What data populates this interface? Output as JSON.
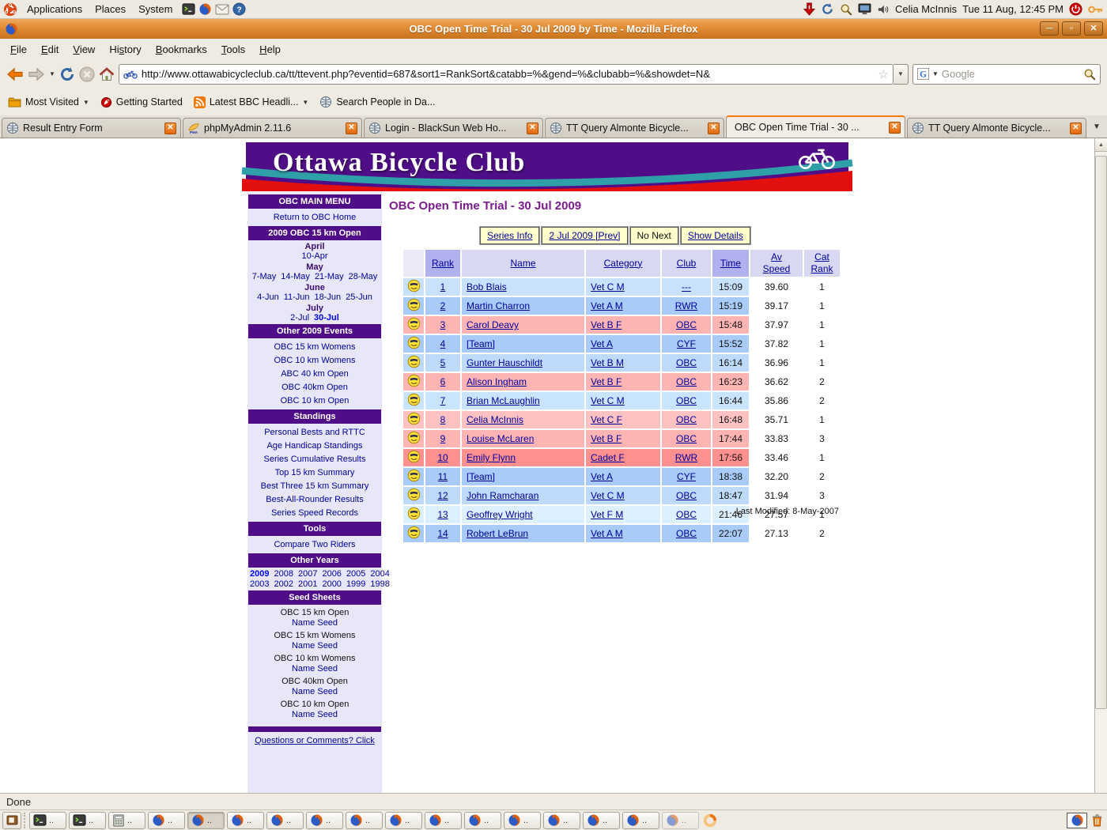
{
  "colors": {
    "purple": "#4F0E87",
    "teal": "#2FA0A8",
    "red": "#E31010",
    "navy": "#000099",
    "blue": "#0000EE",
    "heading": "#7B1B8F",
    "btn": "#FFFFCC"
  },
  "desktop": {
    "panel": {
      "menus": [
        "Applications",
        "Places",
        "System"
      ],
      "user": "Celia McInnis",
      "clock": "Tue 11 Aug, 12:45 PM"
    },
    "status": "Done",
    "taskbar": {
      "buttons": [
        {
          "icon": "terminal",
          "label": ".."
        },
        {
          "icon": "terminal",
          "label": ".."
        },
        {
          "icon": "calc",
          "label": ".."
        },
        {
          "icon": "firefox",
          "label": ".."
        },
        {
          "icon": "firefox",
          "label": "..",
          "active": true
        },
        {
          "icon": "firefox",
          "label": ".."
        },
        {
          "icon": "firefox",
          "label": ".."
        },
        {
          "icon": "firefox",
          "label": ".."
        },
        {
          "icon": "firefox",
          "label": ".."
        },
        {
          "icon": "firefox",
          "label": ".."
        },
        {
          "icon": "firefox",
          "label": ".."
        },
        {
          "icon": "firefox",
          "label": ".."
        },
        {
          "icon": "firefox",
          "label": ".."
        },
        {
          "icon": "firefox",
          "label": ".."
        },
        {
          "icon": "firefox",
          "label": ".."
        },
        {
          "icon": "firefox",
          "label": ".."
        },
        {
          "icon": "firefox",
          "label": "..",
          "faded": true
        }
      ]
    }
  },
  "window": {
    "title": "OBC Open Time Trial - 30 Jul 2009 by Time - Mozilla Firefox"
  },
  "menubar": {
    "items": [
      {
        "label": "File",
        "key": "F"
      },
      {
        "label": "Edit",
        "key": "E"
      },
      {
        "label": "View",
        "key": "V"
      },
      {
        "label": "History",
        "key": "s"
      },
      {
        "label": "Bookmarks",
        "key": "B"
      },
      {
        "label": "Tools",
        "key": "T"
      },
      {
        "label": "Help",
        "key": "H"
      }
    ]
  },
  "navbar": {
    "url": "http://www.ottawabicycleclub.ca/tt/ttevent.php?eventid=687&sort1=RankSort&catabb=%&gend=%&clubabb=%&showdet=N&",
    "search_placeholder": "Google"
  },
  "bookmarks": [
    {
      "label": "Most Visited",
      "icon": "folder",
      "dropdown": true
    },
    {
      "label": "Getting Started",
      "icon": "started",
      "dropdown": false
    },
    {
      "label": "Latest BBC Headli...",
      "icon": "rss",
      "dropdown": true
    },
    {
      "label": "Search People in Da...",
      "icon": "globe",
      "dropdown": false
    }
  ],
  "tabs": [
    {
      "title": "Result Entry Form",
      "icon": "globe",
      "active": false
    },
    {
      "title": "phpMyAdmin 2.11.6",
      "icon": "pma",
      "active": false
    },
    {
      "title": "Login - BlackSun Web Ho...",
      "icon": "globe",
      "active": false
    },
    {
      "title": "TT Query Almonte Bicycle...",
      "icon": "globe",
      "active": false
    },
    {
      "title": "OBC Open Time Trial - 30 ...",
      "icon": "bike",
      "active": true
    },
    {
      "title": "TT Query Almonte Bicycle...",
      "icon": "globe",
      "active": false
    }
  ],
  "banner": {
    "title": "Ottawa Bicycle Club"
  },
  "sidebar": {
    "blocks": [
      {
        "t": "header",
        "text": "OBC MAIN MENU"
      },
      {
        "t": "link",
        "text": "Return to OBC Home"
      },
      {
        "t": "header",
        "text": "2009 OBC 15 km Open"
      },
      {
        "t": "month",
        "text": "April"
      },
      {
        "t": "links",
        "items": [
          {
            "text": "10-Apr"
          }
        ]
      },
      {
        "t": "month",
        "text": "May"
      },
      {
        "t": "links",
        "items": [
          {
            "text": "7-May"
          },
          {
            "text": "14-May"
          },
          {
            "text": "21-May"
          },
          {
            "text": "28-May"
          }
        ]
      },
      {
        "t": "month",
        "text": "June"
      },
      {
        "t": "links",
        "items": [
          {
            "text": "4-Jun"
          },
          {
            "text": "11-Jun"
          },
          {
            "text": "18-Jun"
          },
          {
            "text": "25-Jun"
          }
        ]
      },
      {
        "t": "month",
        "text": "July"
      },
      {
        "t": "links",
        "items": [
          {
            "text": "2-Jul"
          },
          {
            "text": "30-Jul",
            "current": true
          }
        ]
      },
      {
        "t": "header",
        "text": "Other 2009 Events"
      },
      {
        "t": "link",
        "text": "OBC 15 km Womens"
      },
      {
        "t": "link",
        "text": "OBC 10 km Womens"
      },
      {
        "t": "link",
        "text": "ABC 40 km Open"
      },
      {
        "t": "link",
        "text": "OBC 40km Open"
      },
      {
        "t": "link",
        "text": "OBC 10 km Open"
      },
      {
        "t": "header",
        "text": "Standings"
      },
      {
        "t": "link",
        "text": "Personal Bests and RTTC"
      },
      {
        "t": "link",
        "text": "Age Handicap Standings"
      },
      {
        "t": "link",
        "text": "Series Cumulative Results"
      },
      {
        "t": "link",
        "text": "Top 15 km Summary"
      },
      {
        "t": "link",
        "text": "Best Three 15 km Summary"
      },
      {
        "t": "link",
        "text": "Best-All-Rounder Results"
      },
      {
        "t": "link",
        "text": "Series Speed Records"
      },
      {
        "t": "header",
        "text": "Tools"
      },
      {
        "t": "link",
        "text": "Compare Two Riders"
      },
      {
        "t": "header",
        "text": "Other Years"
      },
      {
        "t": "links",
        "items": [
          {
            "text": "2009",
            "current": true
          },
          {
            "text": "2008"
          },
          {
            "text": "2007"
          },
          {
            "text": "2006"
          },
          {
            "text": "2005"
          },
          {
            "text": "2004"
          }
        ]
      },
      {
        "t": "links",
        "items": [
          {
            "text": "2003"
          },
          {
            "text": "2002"
          },
          {
            "text": "2001"
          },
          {
            "text": "2000"
          },
          {
            "text": "1999"
          },
          {
            "text": "1998"
          }
        ]
      },
      {
        "t": "header",
        "text": "Seed Sheets"
      },
      {
        "t": "plain",
        "text": "OBC 15 km Open"
      },
      {
        "t": "link",
        "text": "Name Seed",
        "tight": true
      },
      {
        "t": "plain",
        "text": "OBC 15 km Womens"
      },
      {
        "t": "link",
        "text": "Name Seed",
        "tight": true
      },
      {
        "t": "plain",
        "text": "OBC 10 km Womens"
      },
      {
        "t": "link",
        "text": "Name Seed",
        "tight": true
      },
      {
        "t": "plain",
        "text": "OBC 40km Open"
      },
      {
        "t": "link",
        "text": "Name Seed",
        "tight": true
      },
      {
        "t": "plain",
        "text": "OBC 10 km Open"
      },
      {
        "t": "link",
        "text": "Name Seed",
        "tight": true
      },
      {
        "t": "divider"
      },
      {
        "t": "link",
        "text": "Questions or Comments? Click",
        "underline": true
      }
    ]
  },
  "main": {
    "heading": "OBC Open Time Trial - 30 Jul 2009",
    "nav_buttons": [
      {
        "label": "Series Info",
        "link": true
      },
      {
        "label": "2 Jul 2009 [Prev]",
        "link": true
      },
      {
        "label": "No Next",
        "link": false
      },
      {
        "label": "Show Details",
        "link": true
      }
    ],
    "table": {
      "headers": [
        {
          "lines": [],
          "style": "first"
        },
        {
          "lines": [
            "Rank"
          ],
          "style": "sorted"
        },
        {
          "lines": [
            "Name"
          ],
          "style": "plain"
        },
        {
          "lines": [
            "Category"
          ],
          "style": "plain"
        },
        {
          "lines": [
            "Club"
          ],
          "style": "plain"
        },
        {
          "lines": [
            "Time"
          ],
          "style": "sorted"
        },
        {
          "lines": [
            "Av",
            "Speed"
          ],
          "style": "plain"
        },
        {
          "lines": [
            "Cat",
            "Rank"
          ],
          "style": "plain"
        }
      ],
      "rows": [
        {
          "rank": "1",
          "name": "Bob Blais",
          "category": "Vet C M",
          "club": "---",
          "time": "15:09",
          "speed": "39.60",
          "cat_rank": "1",
          "color": "#C8E2FE"
        },
        {
          "rank": "2",
          "name": "Martin Charron",
          "category": "Vet A M",
          "club": "RWR",
          "time": "15:19",
          "speed": "39.17",
          "cat_rank": "1",
          "color": "#A9CBF8"
        },
        {
          "rank": "3",
          "name": "Carol Deavy",
          "category": "Vet B F",
          "club": "OBC",
          "time": "15:48",
          "speed": "37.97",
          "cat_rank": "1",
          "color": "#FFB4B4"
        },
        {
          "rank": "4",
          "name": "[Team]",
          "category": "Vet A",
          "club": "CYF",
          "time": "15:52",
          "speed": "37.82",
          "cat_rank": "1",
          "color": "#A9CBF8"
        },
        {
          "rank": "5",
          "name": "Gunter Hauschildt",
          "category": "Vet B M",
          "club": "OBC",
          "time": "16:14",
          "speed": "36.96",
          "cat_rank": "1",
          "color": "#BEDAFB"
        },
        {
          "rank": "6",
          "name": "Alison Ingham",
          "category": "Vet B F",
          "club": "OBC",
          "time": "16:23",
          "speed": "36.62",
          "cat_rank": "2",
          "color": "#FFB4B4"
        },
        {
          "rank": "7",
          "name": "Brian McLaughlin",
          "category": "Vet C M",
          "club": "OBC",
          "time": "16:44",
          "speed": "35.86",
          "cat_rank": "2",
          "color": "#C8E4FE"
        },
        {
          "rank": "8",
          "name": "Celia McInnis",
          "category": "Vet C F",
          "club": "OBC",
          "time": "16:48",
          "speed": "35.71",
          "cat_rank": "1",
          "color": "#FFC2C2"
        },
        {
          "rank": "9",
          "name": "Louise McLaren",
          "category": "Vet B F",
          "club": "OBC",
          "time": "17:44",
          "speed": "33.83",
          "cat_rank": "3",
          "color": "#FFB4B4"
        },
        {
          "rank": "10",
          "name": "Emily Flynn",
          "category": "Cadet F",
          "club": "RWR",
          "time": "17:56",
          "speed": "33.46",
          "cat_rank": "1",
          "color": "#FF9090"
        },
        {
          "rank": "11",
          "name": "[Team]",
          "category": "Vet A",
          "club": "CYF",
          "time": "18:38",
          "speed": "32.20",
          "cat_rank": "2",
          "color": "#A9CBF8"
        },
        {
          "rank": "12",
          "name": "John Ramcharan",
          "category": "Vet C M",
          "club": "OBC",
          "time": "18:47",
          "speed": "31.94",
          "cat_rank": "3",
          "color": "#BEDAFB"
        },
        {
          "rank": "13",
          "name": "Geoffrey Wright",
          "category": "Vet F M",
          "club": "OBC",
          "time": "21:46",
          "speed": "27.57",
          "cat_rank": "1",
          "color": "#DCF0FF"
        },
        {
          "rank": "14",
          "name": "Robert LeBrun",
          "category": "Vet A M",
          "club": "OBC",
          "time": "22:07",
          "speed": "27.13",
          "cat_rank": "2",
          "color": "#A9CBF8"
        }
      ]
    },
    "last_modified": "Last Modified: 8-May-2007"
  }
}
